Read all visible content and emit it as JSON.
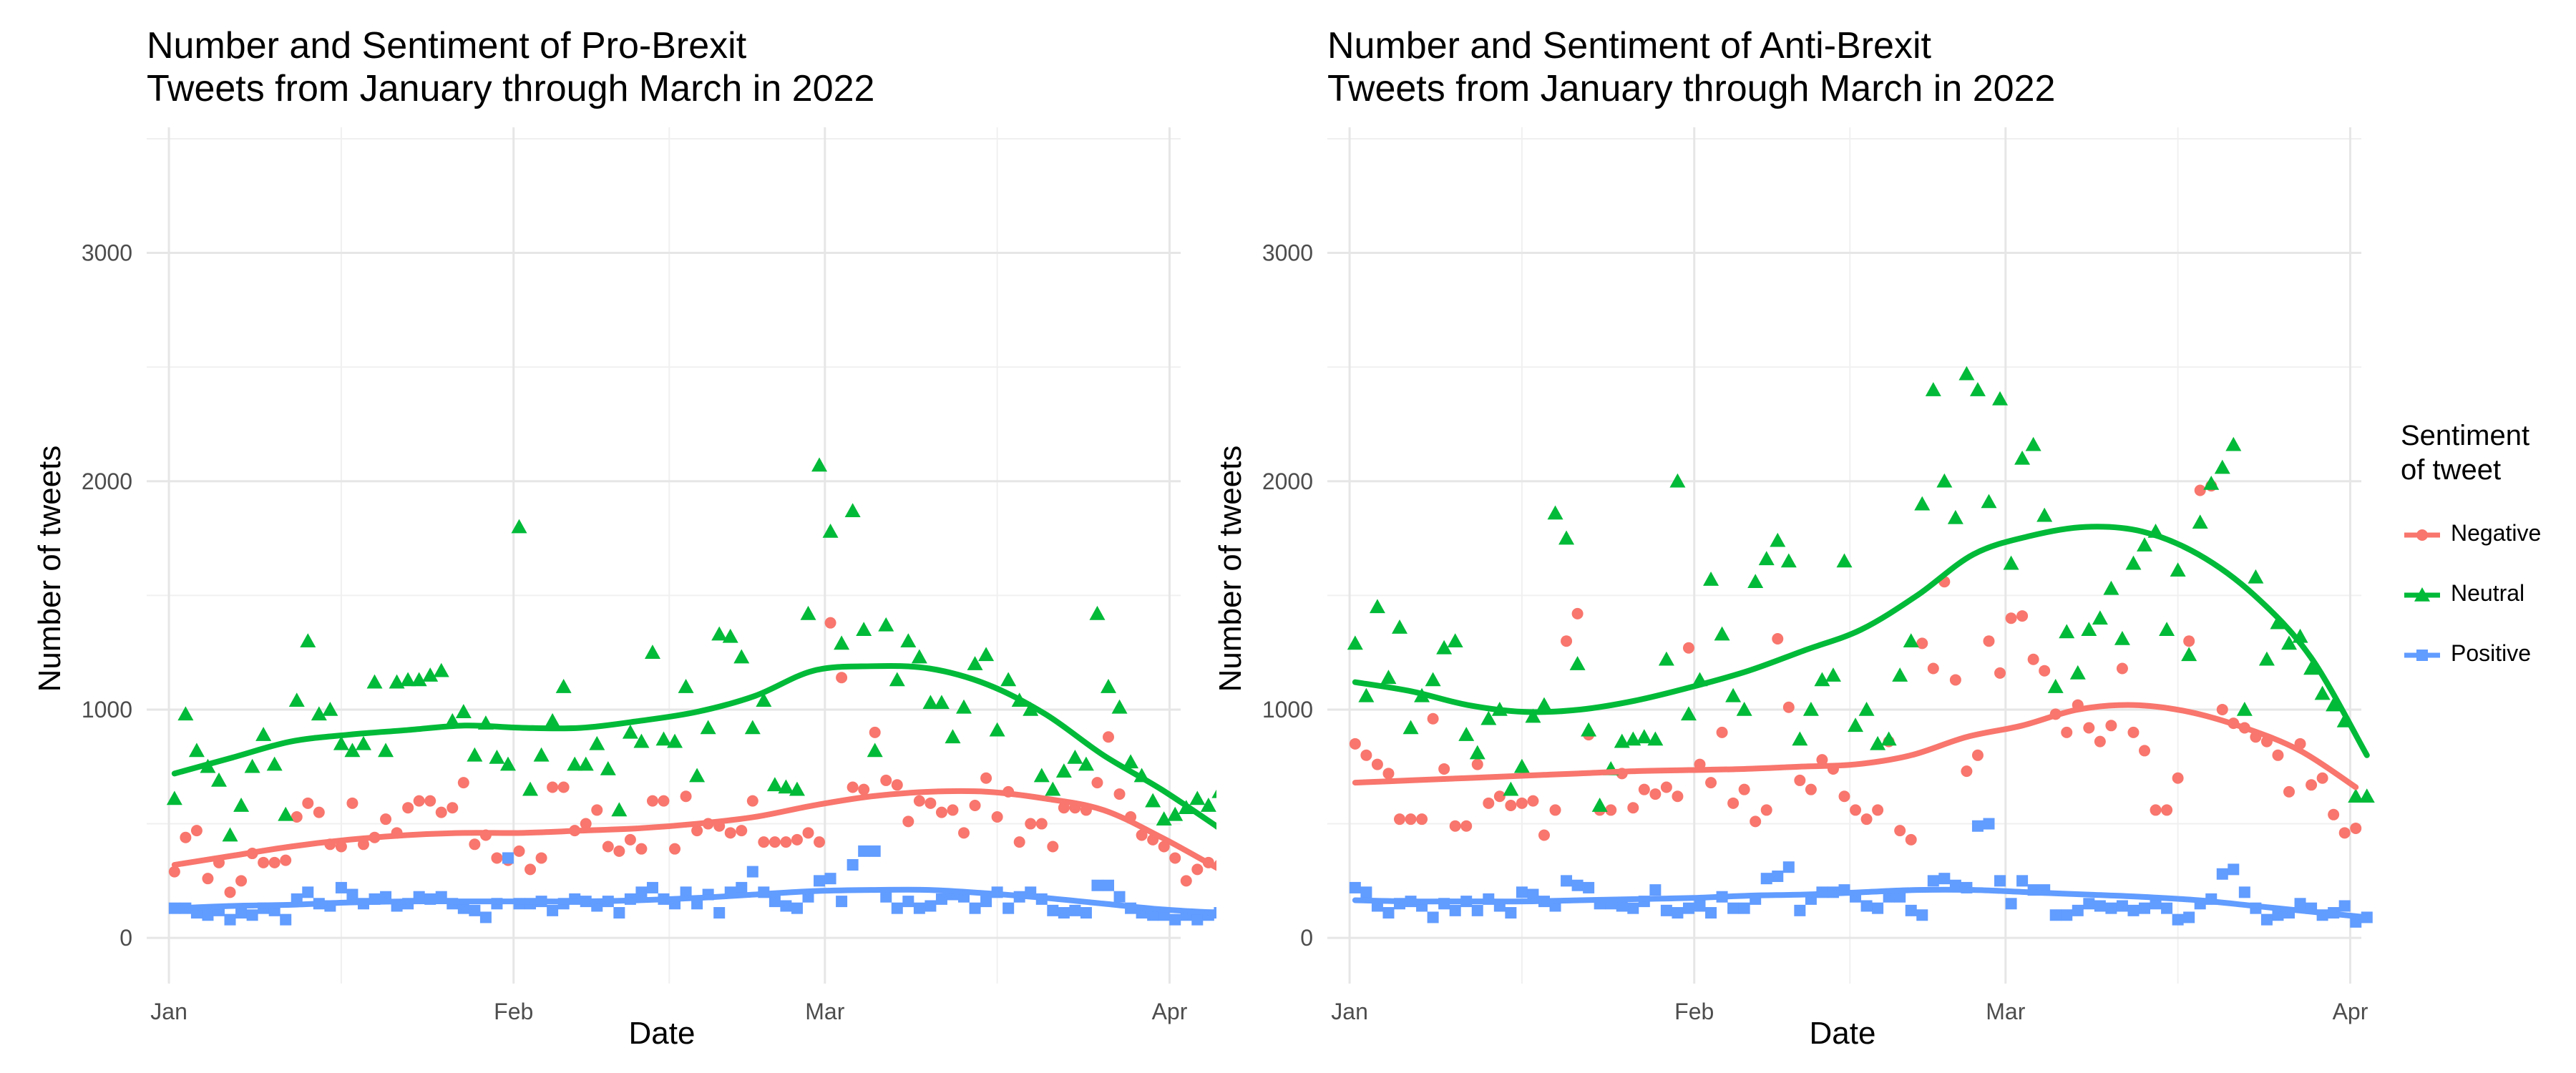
{
  "legend": {
    "title_line1": "Sentiment",
    "title_line2": "of tweet",
    "items": [
      {
        "label": "Negative",
        "color": "#F8766D",
        "shape": "circle"
      },
      {
        "label": "Neutral",
        "color": "#00BA38",
        "shape": "triangle"
      },
      {
        "label": "Positive",
        "color": "#619CFF",
        "shape": "square"
      }
    ]
  },
  "chart_data": [
    {
      "type": "scatter",
      "title_line1": "Number and Sentiment of Pro-Brexit",
      "title_line2": "Tweets from January through March in 2022",
      "xlabel": "Date",
      "ylabel": "Number of tweets",
      "x_range": [
        "2021-12-30",
        "2022-04-02"
      ],
      "ylim": [
        -200,
        3550
      ],
      "y_ticks": [
        0,
        1000,
        2000,
        3000
      ],
      "x_ticks": [
        {
          "date": "2022-01-01",
          "label": "Jan"
        },
        {
          "date": "2022-02-01",
          "label": "Feb"
        },
        {
          "date": "2022-03-01",
          "label": "Mar"
        },
        {
          "date": "2022-04-01",
          "label": "Apr"
        }
      ],
      "grid": true,
      "start_date": "2022-01-01",
      "series": [
        {
          "name": "Negative",
          "color": "#F8766D",
          "values": [
            290,
            440,
            470,
            260,
            330,
            200,
            250,
            370,
            330,
            330,
            340,
            530,
            590,
            550,
            410,
            400,
            590,
            410,
            440,
            520,
            460,
            570,
            600,
            600,
            550,
            570,
            680,
            410,
            450,
            350,
            340,
            380,
            300,
            350,
            660,
            660,
            470,
            500,
            560,
            400,
            380,
            430,
            390,
            600,
            600,
            390,
            620,
            470,
            500,
            490,
            460,
            470,
            600,
            420,
            420,
            420,
            430,
            460,
            420,
            1380,
            1140,
            660,
            650,
            900,
            690,
            670,
            510,
            600,
            590,
            550,
            560,
            460,
            580,
            700,
            530,
            640,
            420,
            500,
            500,
            400,
            570,
            570,
            560,
            680,
            880,
            630,
            530,
            450,
            430,
            400,
            350,
            250,
            300,
            330,
            320
          ],
          "smooth": [
            320,
            360,
            400,
            430,
            450,
            460,
            460,
            470,
            480,
            500,
            530,
            580,
            620,
            640,
            640,
            610,
            560,
            440,
            300
          ]
        },
        {
          "name": "Neutral",
          "color": "#00BA38",
          "values": [
            610,
            980,
            820,
            750,
            690,
            450,
            580,
            750,
            890,
            760,
            540,
            1040,
            1300,
            980,
            1000,
            850,
            820,
            850,
            1120,
            820,
            1120,
            1130,
            1130,
            1150,
            1170,
            950,
            990,
            800,
            940,
            790,
            760,
            1800,
            650,
            800,
            950,
            1100,
            760,
            760,
            850,
            740,
            560,
            900,
            860,
            1250,
            870,
            860,
            1100,
            710,
            920,
            1330,
            1320,
            1230,
            920,
            1040,
            670,
            660,
            650,
            1420,
            2070,
            1780,
            1290,
            1870,
            1350,
            820,
            1370,
            1130,
            1300,
            1230,
            1030,
            1030,
            880,
            1010,
            1200,
            1240,
            910,
            1130,
            1040,
            1000,
            710,
            650,
            730,
            790,
            760,
            1420,
            1100,
            1010,
            770,
            710,
            600,
            520,
            540,
            570,
            610,
            580,
            640
          ],
          "smooth": [
            720,
            790,
            860,
            890,
            910,
            930,
            920,
            920,
            950,
            990,
            1060,
            1170,
            1190,
            1180,
            1110,
            980,
            800,
            650,
            480
          ]
        },
        {
          "name": "Positive",
          "color": "#619CFF",
          "values": [
            130,
            130,
            110,
            100,
            120,
            80,
            110,
            100,
            130,
            120,
            80,
            170,
            200,
            150,
            140,
            220,
            190,
            150,
            170,
            180,
            140,
            150,
            180,
            170,
            180,
            150,
            130,
            120,
            90,
            150,
            350,
            150,
            150,
            160,
            120,
            150,
            170,
            160,
            140,
            160,
            110,
            170,
            200,
            220,
            170,
            150,
            200,
            150,
            190,
            110,
            200,
            220,
            290,
            200,
            160,
            140,
            130,
            180,
            250,
            260,
            160,
            320,
            380,
            380,
            180,
            130,
            160,
            130,
            140,
            170,
            190,
            180,
            130,
            160,
            200,
            130,
            180,
            200,
            170,
            120,
            110,
            120,
            110,
            230,
            230,
            180,
            130,
            110,
            100,
            100,
            80,
            100,
            80,
            100,
            110
          ],
          "smooth": [
            130,
            140,
            145,
            155,
            160,
            160,
            160,
            160,
            165,
            175,
            190,
            205,
            210,
            210,
            195,
            175,
            150,
            125,
            110
          ]
        }
      ]
    },
    {
      "type": "scatter",
      "title_line1": "Number and Sentiment of Anti-Brexit",
      "title_line2": "Tweets from January through March in 2022",
      "xlabel": "Date",
      "ylabel": "Number of tweets",
      "x_range": [
        "2021-12-30",
        "2022-04-02"
      ],
      "ylim": [
        -200,
        3550
      ],
      "y_ticks": [
        0,
        1000,
        2000,
        3000
      ],
      "x_ticks": [
        {
          "date": "2022-01-01",
          "label": "Jan"
        },
        {
          "date": "2022-02-01",
          "label": "Feb"
        },
        {
          "date": "2022-03-01",
          "label": "Mar"
        },
        {
          "date": "2022-04-01",
          "label": "Apr"
        }
      ],
      "grid": true,
      "start_date": "2022-01-01",
      "series": [
        {
          "name": "Negative",
          "color": "#F8766D",
          "values": [
            850,
            800,
            760,
            720,
            520,
            520,
            520,
            960,
            740,
            490,
            490,
            760,
            590,
            620,
            580,
            590,
            600,
            450,
            560,
            1300,
            1420,
            890,
            560,
            560,
            720,
            570,
            650,
            630,
            660,
            620,
            1270,
            760,
            680,
            900,
            590,
            650,
            510,
            560,
            1310,
            1010,
            690,
            650,
            780,
            740,
            620,
            560,
            520,
            560,
            860,
            470,
            430,
            1290,
            1180,
            1560,
            1130,
            730,
            800,
            1300,
            1160,
            1400,
            1410,
            1220,
            1170,
            980,
            900,
            1020,
            920,
            860,
            930,
            1180,
            900,
            820,
            560,
            560,
            700,
            1300,
            1960,
            1980,
            1000,
            940,
            920,
            880,
            860,
            800,
            640,
            850,
            670,
            700,
            540,
            460,
            480
          ],
          "smooth": [
            680,
            690,
            700,
            710,
            720,
            730,
            735,
            740,
            750,
            760,
            800,
            880,
            930,
            1000,
            1020,
            990,
            920,
            820,
            660
          ]
        },
        {
          "name": "Neutral",
          "color": "#00BA38",
          "values": [
            1290,
            1060,
            1450,
            1140,
            1360,
            920,
            1060,
            1130,
            1270,
            1300,
            890,
            810,
            960,
            1000,
            650,
            750,
            970,
            1020,
            1860,
            1750,
            1200,
            910,
            580,
            740,
            860,
            870,
            880,
            870,
            1220,
            2000,
            980,
            1130,
            1570,
            1330,
            1060,
            1000,
            1560,
            1660,
            1740,
            1650,
            870,
            1000,
            1130,
            1150,
            1650,
            930,
            1000,
            850,
            870,
            1150,
            1300,
            1900,
            2400,
            2000,
            1840,
            2470,
            2400,
            1910,
            2360,
            1640,
            2100,
            2160,
            1850,
            1100,
            1340,
            1160,
            1350,
            1400,
            1530,
            1310,
            1640,
            1720,
            1780,
            1350,
            1610,
            1240,
            1820,
            1990,
            2060,
            2160,
            1000,
            1580,
            1220,
            1380,
            1290,
            1320,
            1180,
            1070,
            1020,
            950,
            620,
            620
          ],
          "smooth": [
            1120,
            1080,
            1020,
            990,
            1000,
            1040,
            1100,
            1170,
            1260,
            1350,
            1500,
            1680,
            1760,
            1800,
            1780,
            1680,
            1500,
            1230,
            800
          ]
        },
        {
          "name": "Positive",
          "color": "#619CFF",
          "values": [
            220,
            200,
            140,
            110,
            150,
            160,
            140,
            90,
            150,
            120,
            160,
            120,
            170,
            140,
            110,
            200,
            190,
            160,
            140,
            250,
            230,
            220,
            150,
            150,
            140,
            130,
            160,
            210,
            120,
            110,
            130,
            140,
            110,
            180,
            130,
            130,
            170,
            260,
            270,
            310,
            120,
            170,
            200,
            200,
            210,
            180,
            140,
            130,
            180,
            180,
            120,
            100,
            250,
            260,
            230,
            220,
            490,
            500,
            250,
            150,
            250,
            210,
            210,
            100,
            100,
            120,
            150,
            140,
            130,
            140,
            120,
            130,
            150,
            130,
            80,
            90,
            150,
            170,
            280,
            300,
            200,
            130,
            80,
            100,
            110,
            150,
            130,
            100,
            110,
            140,
            70,
            90
          ],
          "smooth": [
            165,
            160,
            160,
            160,
            165,
            170,
            175,
            185,
            190,
            200,
            210,
            210,
            200,
            190,
            180,
            165,
            140,
            115,
            90
          ]
        }
      ]
    }
  ]
}
